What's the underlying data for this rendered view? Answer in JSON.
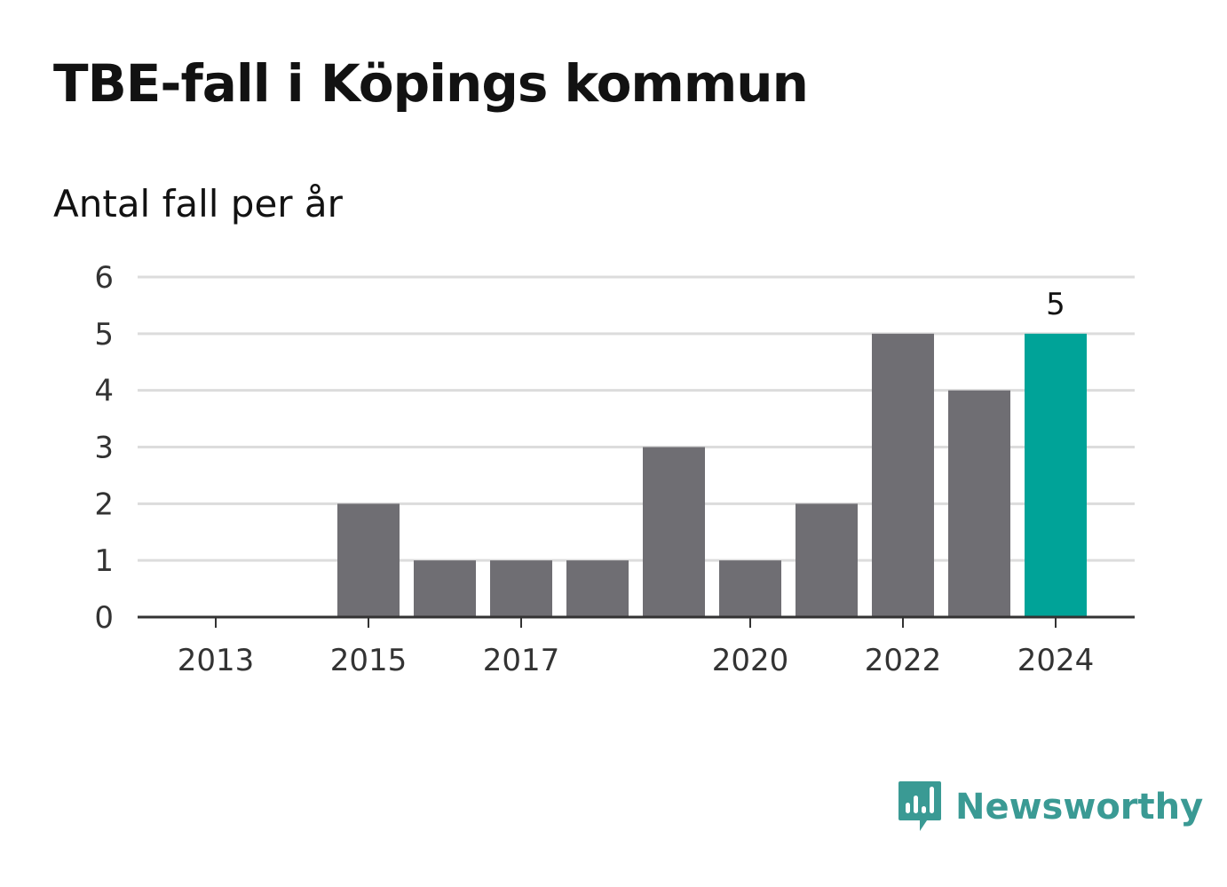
{
  "title": "TBE-fall i Köpings kommun",
  "subtitle": "Antal fall per år",
  "brand": "Newsworthy",
  "colors": {
    "bar": "#6f6e73",
    "highlight": "#00a398",
    "grid": "#dcdcdc",
    "axis": "#333333",
    "brand": "#3a9a94"
  },
  "chart_data": {
    "type": "bar",
    "title": "TBE-fall i Köpings kommun",
    "subtitle": "Antal fall per år",
    "xlabel": "",
    "ylabel": "",
    "categories": [
      2013,
      2014,
      2015,
      2016,
      2017,
      2018,
      2019,
      2020,
      2021,
      2022,
      2023,
      2024
    ],
    "values": [
      0,
      0,
      2,
      1,
      1,
      1,
      3,
      1,
      2,
      5,
      4,
      5
    ],
    "highlight_index": 11,
    "highlight_label": "5",
    "xticks": [
      2013,
      2015,
      2017,
      2020,
      2022,
      2024
    ],
    "yticks": [
      0,
      1,
      2,
      3,
      4,
      5,
      6
    ],
    "ylim": [
      0,
      6
    ],
    "grid": true
  }
}
